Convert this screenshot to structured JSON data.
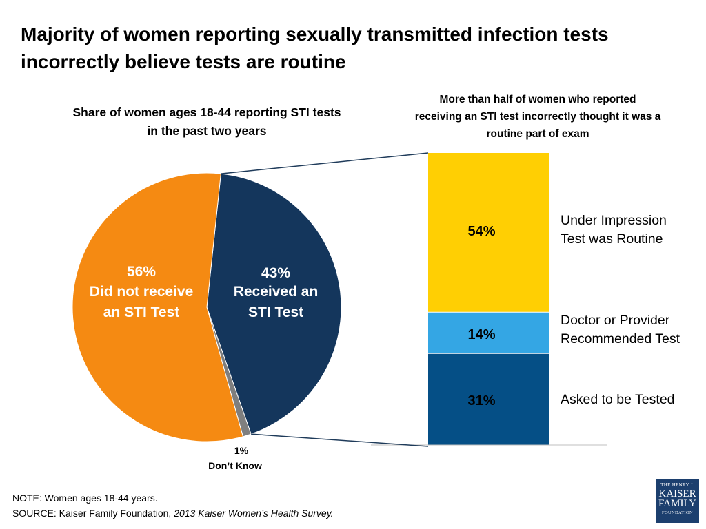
{
  "title_lines": [
    "Majority of women reporting sexually transmitted infection tests",
    "incorrectly believe tests are routine"
  ],
  "chart_data": [
    {
      "type": "pie",
      "title_lines": [
        "Share of women ages 18-44 reporting STI tests",
        "in the past two years"
      ],
      "slices": [
        {
          "value": 43,
          "pct_label": "43%",
          "label_lines": [
            "Received an",
            "STI Test"
          ],
          "color": "#14365c"
        },
        {
          "value": 1,
          "pct_label": "1%",
          "label_lines": [
            "Don’t Know"
          ],
          "color": "#7f7f7f"
        },
        {
          "value": 56,
          "pct_label": "56%",
          "label_lines": [
            "Did not receive",
            "an STI Test"
          ],
          "color": "#f58a12"
        }
      ]
    },
    {
      "type": "bar",
      "stacked": true,
      "title_lines": [
        "More than half of women who reported",
        "receiving an STI test incorrectly thought it was a",
        "routine part of exam"
      ],
      "segments": [
        {
          "value": 31,
          "pct_label": "31%",
          "label_lines": [
            "Asked to be Tested"
          ],
          "color": "#054f86"
        },
        {
          "value": 14,
          "pct_label": "14%",
          "label_lines": [
            "Doctor or Provider",
            "Recommended Test"
          ],
          "color": "#34a6e4"
        },
        {
          "value": 54,
          "pct_label": "54%",
          "label_lines": [
            "Under Impression",
            "Test was Routine"
          ],
          "color": "#ffcf03"
        }
      ]
    }
  ],
  "note": {
    "line1": "NOTE: Women ages 18-44 years.",
    "source_prefix": "SOURCE:  Kaiser Family Foundation, ",
    "source_italic": "2013 Kaiser Women’s Health Survey."
  },
  "logo": {
    "line1": "THE HENRY J.",
    "line2": "KAISER",
    "line3": "FAMILY",
    "line4": "FOUNDATION"
  }
}
